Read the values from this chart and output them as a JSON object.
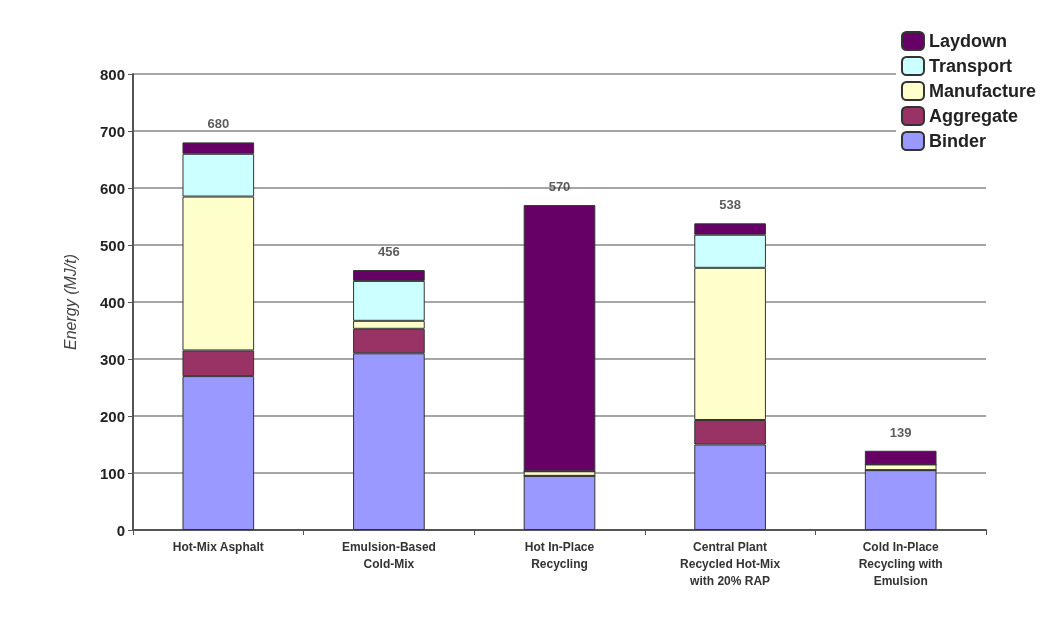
{
  "chart_data": {
    "type": "bar",
    "stacked": true,
    "ylabel": "Energy (MJ/t)",
    "categories": [
      "Hot-Mix Asphalt",
      "Emulsion-Based\nCold-Mix",
      "Hot In-Place\nRecycling",
      "Central Plant\nRecycled Hot-Mix\nwith 20% RAP",
      "Cold In-Place\nRecycling with\nEmulsion"
    ],
    "series": [
      {
        "name": "Binder",
        "color": "#9999ff",
        "values": [
          270,
          310,
          95,
          150,
          105
        ]
      },
      {
        "name": "Aggregate",
        "color": "#993366",
        "values": [
          45,
          43,
          0,
          43,
          0
        ]
      },
      {
        "name": "Manufacture",
        "color": "#ffffcc",
        "values": [
          270,
          14,
          8,
          267,
          10
        ]
      },
      {
        "name": "Transport",
        "color": "#ccffff",
        "values": [
          75,
          70,
          0,
          58,
          0
        ]
      },
      {
        "name": "Laydown",
        "color": "#660066",
        "values": [
          20,
          19,
          467,
          20,
          24
        ]
      }
    ],
    "totals": [
      "680",
      "456",
      "570",
      "538",
      "139"
    ],
    "ylim": [
      0,
      800
    ],
    "yticks": [
      0,
      100,
      200,
      300,
      400,
      500,
      600,
      700,
      800
    ],
    "grid": "y",
    "legend": "top right"
  }
}
